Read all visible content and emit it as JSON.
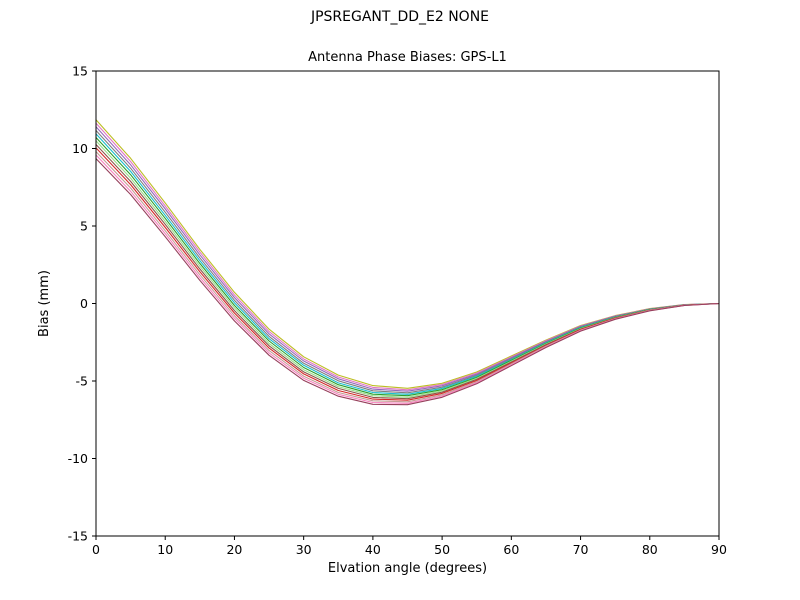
{
  "header": {
    "title": "JPSREGANT_DD_E2 NONE",
    "subtitle": "Antenna Phase Biases: GPS-L1"
  },
  "chart_data": {
    "type": "line",
    "title": "JPSREGANT_DD_E2 NONE",
    "subtitle": "Antenna Phase Biases: GPS-L1",
    "xlabel": "Elvation angle (degrees)",
    "ylabel": "Bias (mm)",
    "xlim": [
      0,
      90
    ],
    "ylim": [
      -15,
      15
    ],
    "x_ticks": [
      0,
      10,
      20,
      30,
      40,
      50,
      60,
      70,
      80,
      90
    ],
    "y_ticks": [
      -15,
      -10,
      -5,
      0,
      5,
      10,
      15
    ],
    "grid": false,
    "legend_position": "none",
    "x": [
      0,
      5,
      10,
      15,
      20,
      25,
      30,
      35,
      40,
      45,
      50,
      55,
      60,
      65,
      70,
      75,
      80,
      85,
      90
    ],
    "series": [
      {
        "name": "series-01",
        "color": "#bcbd22",
        "values": [
          11.85,
          9.37,
          6.49,
          3.5,
          0.72,
          -1.66,
          -3.44,
          -4.62,
          -5.3,
          -5.47,
          -5.15,
          -4.42,
          -3.39,
          -2.36,
          -1.42,
          -0.78,
          -0.33,
          -0.07,
          0.0
        ]
      },
      {
        "name": "series-02",
        "color": "#e377c2",
        "values": [
          11.63,
          9.16,
          6.29,
          3.32,
          0.55,
          -1.81,
          -3.58,
          -4.74,
          -5.41,
          -5.57,
          -5.23,
          -4.49,
          -3.45,
          -2.4,
          -1.45,
          -0.8,
          -0.34,
          -0.08,
          0.0
        ]
      },
      {
        "name": "series-03",
        "color": "#9467bd",
        "values": [
          11.4,
          8.95,
          6.1,
          3.14,
          0.39,
          -1.96,
          -3.71,
          -4.86,
          -5.52,
          -5.66,
          -5.31,
          -4.56,
          -3.5,
          -2.45,
          -1.48,
          -0.82,
          -0.36,
          -0.08,
          0.0
        ]
      },
      {
        "name": "series-04",
        "color": "#7f7f7f",
        "values": [
          11.16,
          8.73,
          5.89,
          2.95,
          0.21,
          -2.12,
          -3.86,
          -4.99,
          -5.63,
          -5.76,
          -5.4,
          -4.63,
          -3.56,
          -2.49,
          -1.52,
          -0.85,
          -0.37,
          -0.09,
          0.0
        ]
      },
      {
        "name": "series-05",
        "color": "#17becf",
        "values": [
          10.94,
          8.52,
          5.69,
          2.77,
          0.05,
          -2.27,
          -3.99,
          -5.12,
          -5.74,
          -5.86,
          -5.48,
          -4.7,
          -3.62,
          -2.54,
          -1.55,
          -0.87,
          -0.38,
          -0.09,
          0.0
        ]
      },
      {
        "name": "series-06",
        "color": "#2ca02c",
        "values": [
          10.71,
          8.31,
          5.5,
          2.59,
          -0.12,
          -2.42,
          -4.13,
          -5.24,
          -5.85,
          -5.95,
          -5.56,
          -4.77,
          -3.67,
          -2.58,
          -1.58,
          -0.89,
          -0.39,
          -0.1,
          0.0
        ]
      },
      {
        "name": "series-07",
        "color": "#98df8a",
        "values": [
          10.49,
          8.09,
          5.3,
          2.41,
          -0.28,
          -2.58,
          -4.27,
          -5.36,
          -5.95,
          -6.05,
          -5.64,
          -4.83,
          -3.73,
          -2.62,
          -1.62,
          -0.91,
          -0.41,
          -0.1,
          0.0
        ]
      },
      {
        "name": "series-08",
        "color": "#8c564b",
        "values": [
          10.26,
          7.88,
          5.11,
          2.23,
          -0.45,
          -2.73,
          -4.41,
          -5.48,
          -6.06,
          -6.14,
          -5.72,
          -4.9,
          -3.78,
          -2.66,
          -1.65,
          -0.93,
          -0.42,
          -0.11,
          0.0
        ]
      },
      {
        "name": "series-09",
        "color": "#d62728",
        "values": [
          10.04,
          7.67,
          4.91,
          2.05,
          -0.61,
          -2.88,
          -4.54,
          -5.61,
          -6.17,
          -6.24,
          -5.8,
          -4.97,
          -3.84,
          -2.71,
          -1.68,
          -0.95,
          -0.43,
          -0.11,
          0.0
        ]
      },
      {
        "name": "series-10",
        "color": "#c49c94",
        "values": [
          9.8,
          7.45,
          4.7,
          1.86,
          -0.79,
          -3.04,
          -4.69,
          -5.74,
          -6.28,
          -6.34,
          -5.89,
          -5.04,
          -3.9,
          -2.75,
          -1.72,
          -0.98,
          -0.44,
          -0.12,
          0.0
        ]
      },
      {
        "name": "series-11",
        "color": "#f781bf",
        "values": [
          9.58,
          7.24,
          4.51,
          1.68,
          -0.95,
          -3.19,
          -4.82,
          -5.86,
          -6.39,
          -6.44,
          -5.97,
          -5.11,
          -3.95,
          -2.8,
          -1.75,
          -1.0,
          -0.46,
          -0.12,
          0.0
        ]
      },
      {
        "name": "series-12",
        "color": "#97405c",
        "values": [
          9.35,
          7.03,
          4.31,
          1.5,
          -1.12,
          -3.34,
          -4.96,
          -5.98,
          -6.5,
          -6.53,
          -6.05,
          -5.18,
          -4.01,
          -2.84,
          -1.78,
          -1.02,
          -0.47,
          -0.13,
          0.0
        ]
      }
    ]
  }
}
